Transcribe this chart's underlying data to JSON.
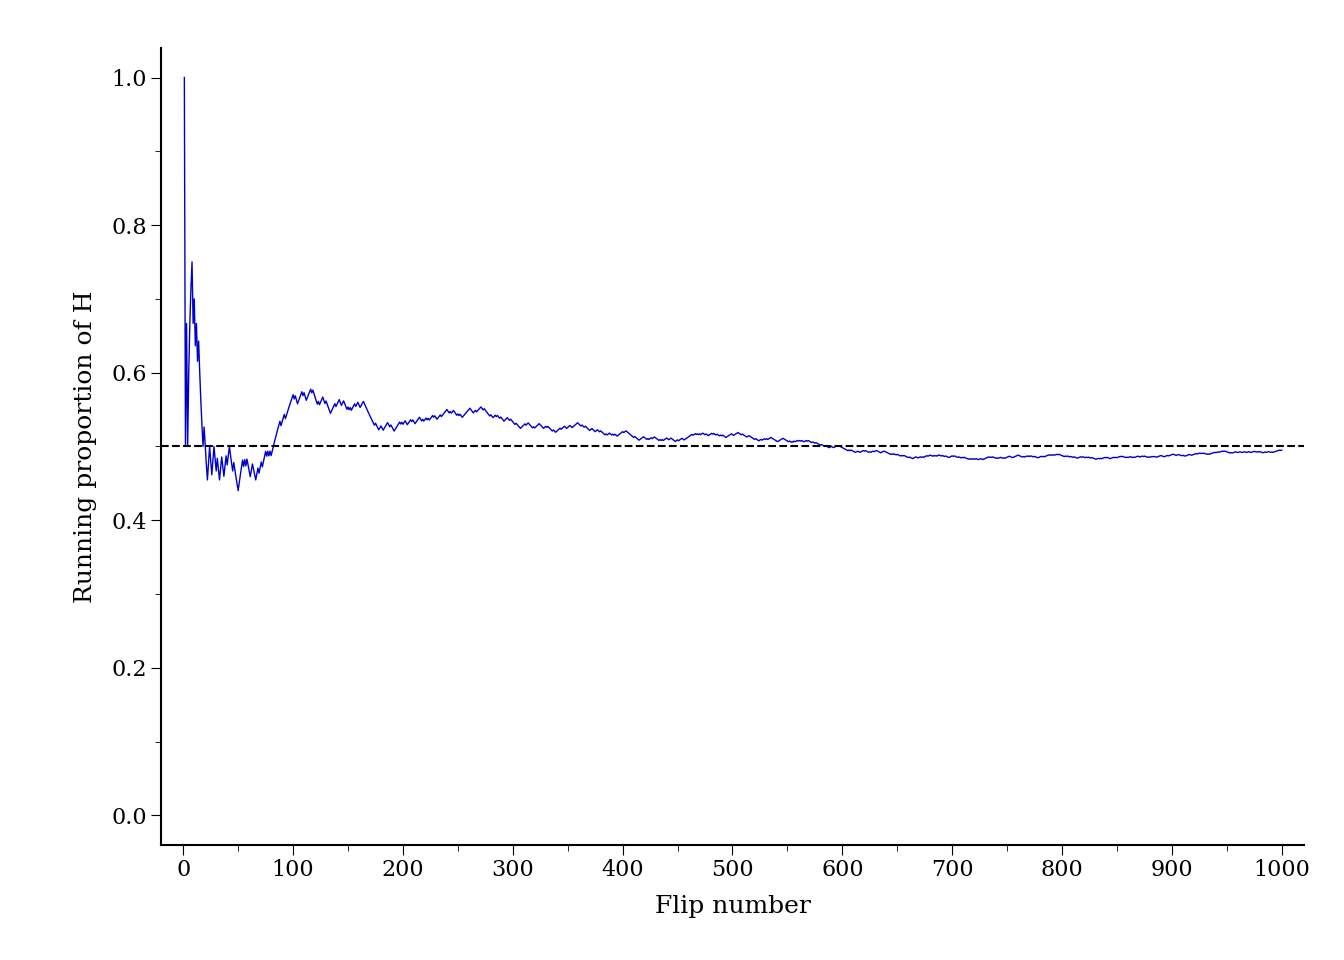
{
  "n_flips": 1000,
  "ylabel": "Running proportion of H",
  "xlabel": "Flip number",
  "line_color": "#0000CD",
  "dashed_line_color": "#000000",
  "dashed_line_y": 0.5,
  "ylim": [
    -0.04,
    1.04
  ],
  "ylim_visible": [
    0.0,
    1.0
  ],
  "xlim": [
    -20,
    1020
  ],
  "xlim_visible": [
    0,
    1000
  ],
  "yticks": [
    0.0,
    0.2,
    0.4,
    0.6,
    0.8,
    1.0
  ],
  "xticks": [
    0,
    100,
    200,
    300,
    400,
    500,
    600,
    700,
    800,
    900,
    1000
  ],
  "background_color": "#ffffff",
  "seed": 7,
  "line_width": 1.0,
  "xlabel_fontsize": 18,
  "ylabel_fontsize": 18,
  "tick_labelsize": 16
}
